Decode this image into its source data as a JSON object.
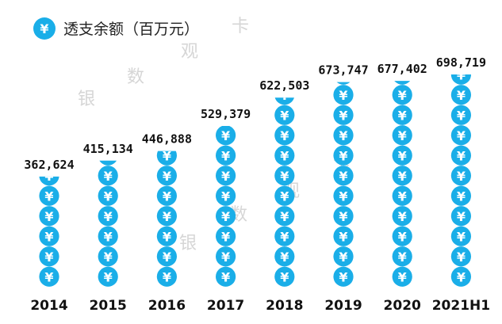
{
  "chart_data": {
    "type": "bar",
    "title": "透支余额（百万元）",
    "legend_icon": "yen-coin-icon",
    "legend_glyph": "¥",
    "categories": [
      "2014",
      "2015",
      "2016",
      "2017",
      "2018",
      "2019",
      "2020",
      "2021H1"
    ],
    "values": [
      362624,
      415134,
      446888,
      529379,
      622503,
      673747,
      677402,
      698719
    ],
    "value_labels": [
      "362,624",
      "415,134",
      "446,888",
      "529,379",
      "622,503",
      "673,747",
      "677,402",
      "698,719"
    ],
    "ylabel": "",
    "xlabel": "",
    "grid": false,
    "color": "#1AAEE8",
    "legend_position": "top-left"
  },
  "watermark": {
    "chars": [
      "银",
      "数",
      "观",
      "卡"
    ]
  }
}
